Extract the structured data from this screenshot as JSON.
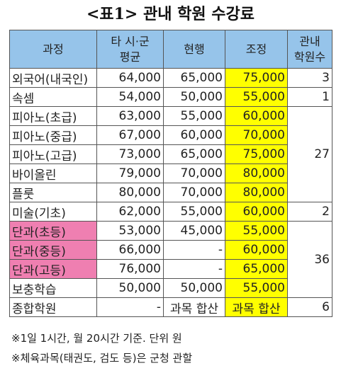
{
  "title": "<표1> 관내 학원 수강료",
  "headers": {
    "course": "과정",
    "avg_line1": "타 시·군",
    "avg_line2": "평균",
    "current": "현행",
    "adjusted": "조정",
    "count_line1": "관내",
    "count_line2": "학원수"
  },
  "rows": [
    {
      "name": "외국어(내국인)",
      "avg": "64,000",
      "current": "65,000",
      "adjusted": "75,000",
      "count": "3"
    },
    {
      "name": "속셈",
      "avg": "54,000",
      "current": "50,000",
      "adjusted": "55,000",
      "count": "1"
    },
    {
      "name": "피아노(초급)",
      "avg": "63,000",
      "current": "55,000",
      "adjusted": "60,000"
    },
    {
      "name": "피아노(중급)",
      "avg": "67,000",
      "current": "60,000",
      "adjusted": "70,000"
    },
    {
      "name": "피아노(고급)",
      "avg": "73,000",
      "current": "65,000",
      "adjusted": "75,000"
    },
    {
      "name": "바이올린",
      "avg": "79,000",
      "current": "70,000",
      "adjusted": "80,000"
    },
    {
      "name": "플룻",
      "avg": "80,000",
      "current": "70,000",
      "adjusted": "80,000"
    },
    {
      "name": "미술(기초)",
      "avg": "62,000",
      "current": "55,000",
      "adjusted": "60,000",
      "count": "2"
    },
    {
      "name": "단과(초등)",
      "avg": "53,000",
      "current": "45,000",
      "adjusted": "55,000"
    },
    {
      "name": "단과(중등)",
      "avg": "66,000",
      "current": "-",
      "adjusted": "60,000"
    },
    {
      "name": "단과(고등)",
      "avg": "76,000",
      "current": "-",
      "adjusted": "65,000"
    },
    {
      "name": "보충학습",
      "avg": "50,000",
      "current": "50,000",
      "adjusted": "55,000"
    },
    {
      "name": "종합학원",
      "avg": "-",
      "current": "과목 합산",
      "adjusted": "과목 합산",
      "count": "6"
    }
  ],
  "group_counts": {
    "piano_group": "27",
    "dangwa_group": "36"
  },
  "colors": {
    "header_bg": "#96c4ea",
    "highlight_yellow": "#ffff00",
    "highlight_pink": "#ef7fb1"
  },
  "notes": [
    "※1일 1시간, 월 20시간 기준. 단위 원",
    "※체육과목(태권도, 검도 등)은 군청 관할"
  ]
}
